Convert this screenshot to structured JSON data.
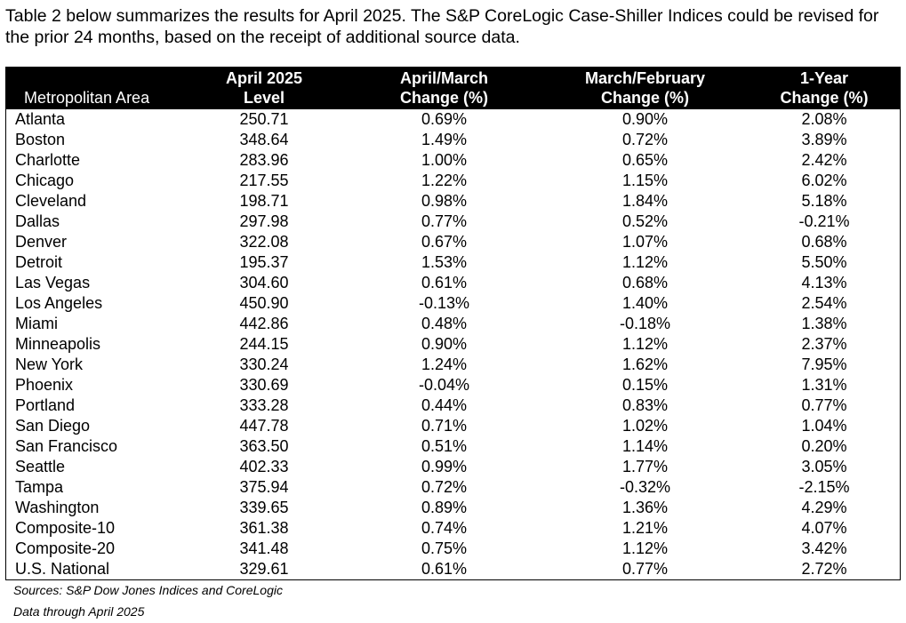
{
  "intro_text": "Table 2 below summarizes the results for April 2025. The S&P CoreLogic Case-Shiller Indices could be revised for the prior 24 months, based on the receipt of additional source data.",
  "table": {
    "headers": {
      "area": "Metropolitan Area",
      "level_line1": "April 2025",
      "level_line2": "Level",
      "april_march_line1": "April/March",
      "april_march_line2": "Change (%)",
      "march_feb_line1": "March/February",
      "march_feb_line2": "Change (%)",
      "one_year_line1": "1-Year",
      "one_year_line2": "Change (%)"
    },
    "rows": [
      {
        "area": "Atlanta",
        "level": "250.71",
        "april_march": "0.69%",
        "march_feb": "0.90%",
        "one_year": "2.08%"
      },
      {
        "area": "Boston",
        "level": "348.64",
        "april_march": "1.49%",
        "march_feb": "0.72%",
        "one_year": "3.89%"
      },
      {
        "area": "Charlotte",
        "level": "283.96",
        "april_march": "1.00%",
        "march_feb": "0.65%",
        "one_year": "2.42%"
      },
      {
        "area": "Chicago",
        "level": "217.55",
        "april_march": "1.22%",
        "march_feb": "1.15%",
        "one_year": "6.02%"
      },
      {
        "area": "Cleveland",
        "level": "198.71",
        "april_march": "0.98%",
        "march_feb": "1.84%",
        "one_year": "5.18%"
      },
      {
        "area": "Dallas",
        "level": "297.98",
        "april_march": "0.77%",
        "march_feb": "0.52%",
        "one_year": "-0.21%"
      },
      {
        "area": "Denver",
        "level": "322.08",
        "april_march": "0.67%",
        "march_feb": "1.07%",
        "one_year": "0.68%"
      },
      {
        "area": "Detroit",
        "level": "195.37",
        "april_march": "1.53%",
        "march_feb": "1.12%",
        "one_year": "5.50%"
      },
      {
        "area": "Las Vegas",
        "level": "304.60",
        "april_march": "0.61%",
        "march_feb": "0.68%",
        "one_year": "4.13%"
      },
      {
        "area": "Los Angeles",
        "level": "450.90",
        "april_march": "-0.13%",
        "march_feb": "1.40%",
        "one_year": "2.54%"
      },
      {
        "area": "Miami",
        "level": "442.86",
        "april_march": "0.48%",
        "march_feb": "-0.18%",
        "one_year": "1.38%"
      },
      {
        "area": "Minneapolis",
        "level": "244.15",
        "april_march": "0.90%",
        "march_feb": "1.12%",
        "one_year": "2.37%"
      },
      {
        "area": "New York",
        "level": "330.24",
        "april_march": "1.24%",
        "march_feb": "1.62%",
        "one_year": "7.95%"
      },
      {
        "area": "Phoenix",
        "level": "330.69",
        "april_march": "-0.04%",
        "march_feb": "0.15%",
        "one_year": "1.31%"
      },
      {
        "area": "Portland",
        "level": "333.28",
        "april_march": "0.44%",
        "march_feb": "0.83%",
        "one_year": "0.77%"
      },
      {
        "area": "San Diego",
        "level": "447.78",
        "april_march": "0.71%",
        "march_feb": "1.02%",
        "one_year": "1.04%"
      },
      {
        "area": "San Francisco",
        "level": "363.50",
        "april_march": "0.51%",
        "march_feb": "1.14%",
        "one_year": "0.20%"
      },
      {
        "area": "Seattle",
        "level": "402.33",
        "april_march": "0.99%",
        "march_feb": "1.77%",
        "one_year": "3.05%"
      },
      {
        "area": "Tampa",
        "level": "375.94",
        "april_march": "0.72%",
        "march_feb": "-0.32%",
        "one_year": "-2.15%"
      },
      {
        "area": "Washington",
        "level": "339.65",
        "april_march": "0.89%",
        "march_feb": "1.36%",
        "one_year": "4.29%"
      },
      {
        "area": "Composite-10",
        "level": "361.38",
        "april_march": "0.74%",
        "march_feb": "1.21%",
        "one_year": "4.07%"
      },
      {
        "area": "Composite-20",
        "level": "341.48",
        "april_march": "0.75%",
        "march_feb": "1.12%",
        "one_year": "3.42%"
      },
      {
        "area": "U.S. National",
        "level": "329.61",
        "april_march": "0.61%",
        "march_feb": "0.77%",
        "one_year": "2.72%"
      }
    ]
  },
  "footnotes": {
    "sources": "Sources: S&P Dow Jones Indices and CoreLogic",
    "data_through": "Data through April 2025"
  }
}
